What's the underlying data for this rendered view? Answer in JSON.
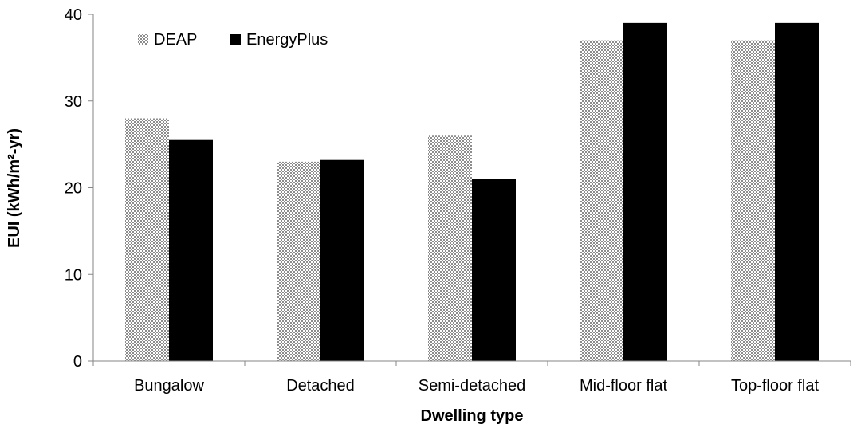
{
  "chart_data": {
    "type": "bar",
    "categories": [
      "Bungalow",
      "Detached",
      "Semi-detached",
      "Mid-floor flat",
      "Top-floor flat"
    ],
    "series": [
      {
        "name": "DEAP",
        "values": [
          28,
          23,
          26,
          37,
          37
        ],
        "color": "#a6a6a6",
        "pattern": "checkered"
      },
      {
        "name": "EnergyPlus",
        "values": [
          25.5,
          23.2,
          21,
          39,
          39
        ],
        "color": "#000000"
      }
    ],
    "title": "",
    "xlabel": "Dwelling type",
    "ylabel": "EUI (kWh/m²-yr)",
    "ylim": [
      0,
      40
    ],
    "yticks": [
      0,
      10,
      20,
      30,
      40
    ],
    "grid": false,
    "legend_position": "top-left"
  }
}
